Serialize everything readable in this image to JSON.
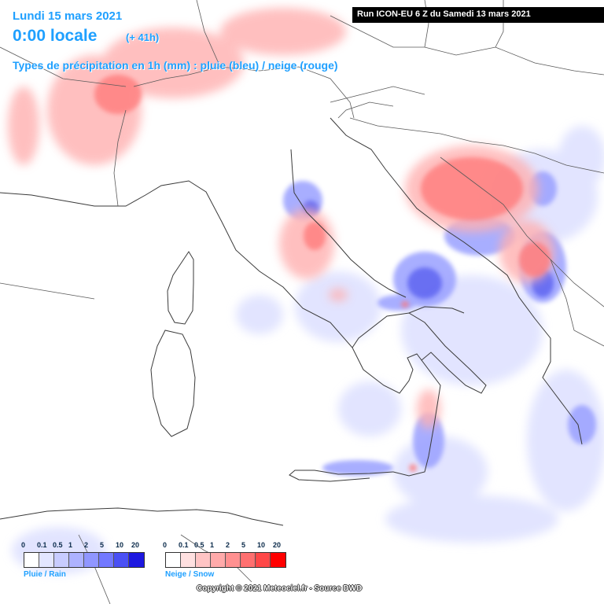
{
  "header": {
    "date": "Lundi 15 mars 2021",
    "local_time": "0:00 locale",
    "lead_time": "(+ 41h)",
    "type_title": "Types de précipitation en 1h (mm) : pluie (bleu) / neige (rouge)"
  },
  "run_info": "Run ICON-EU 6 Z du Samedi 13 mars 2021",
  "legend_rain": {
    "ticks": [
      "0",
      "0.1",
      "0.5",
      "1",
      "2",
      "5",
      "10",
      "20"
    ],
    "colors": [
      "#ffffff",
      "#e3e6ff",
      "#c8ccff",
      "#adb2ff",
      "#9096ff",
      "#7278ff",
      "#4a50f5",
      "#1d18e0"
    ],
    "label": "Pluie / Rain"
  },
  "legend_snow": {
    "ticks": [
      "0",
      "0.1",
      "0.5",
      "1",
      "2",
      "5",
      "10",
      "20"
    ],
    "colors": [
      "#ffffff",
      "#ffe0e0",
      "#ffc4c4",
      "#ffaaaa",
      "#ff9090",
      "#ff7070",
      "#ff4848",
      "#ff0000"
    ],
    "label": "Neige / Snow"
  },
  "copyright": "Copyright © 2021 Meteociel.fr - Source DWD"
}
